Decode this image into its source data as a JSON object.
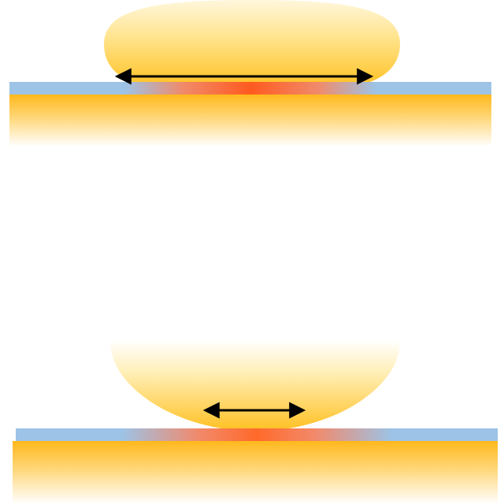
{
  "diagram": {
    "panels": [
      {
        "id": "top",
        "arrow": "double-headed",
        "contact": "wide"
      },
      {
        "id": "bottom",
        "arrow": "double-headed",
        "contact": "narrow"
      }
    ],
    "colors": {
      "drop_highlight": "#fff6d5",
      "drop_body": "#ffd86a",
      "drop_edge": "#ffc228",
      "substrate_top": "#ffbe2a",
      "substrate_fade": "#ffffff",
      "film": "#9dc3e6",
      "contact_hot": "#ff5a1f",
      "contact_warm": "#ff8a3a",
      "arrow": "#000000"
    }
  }
}
